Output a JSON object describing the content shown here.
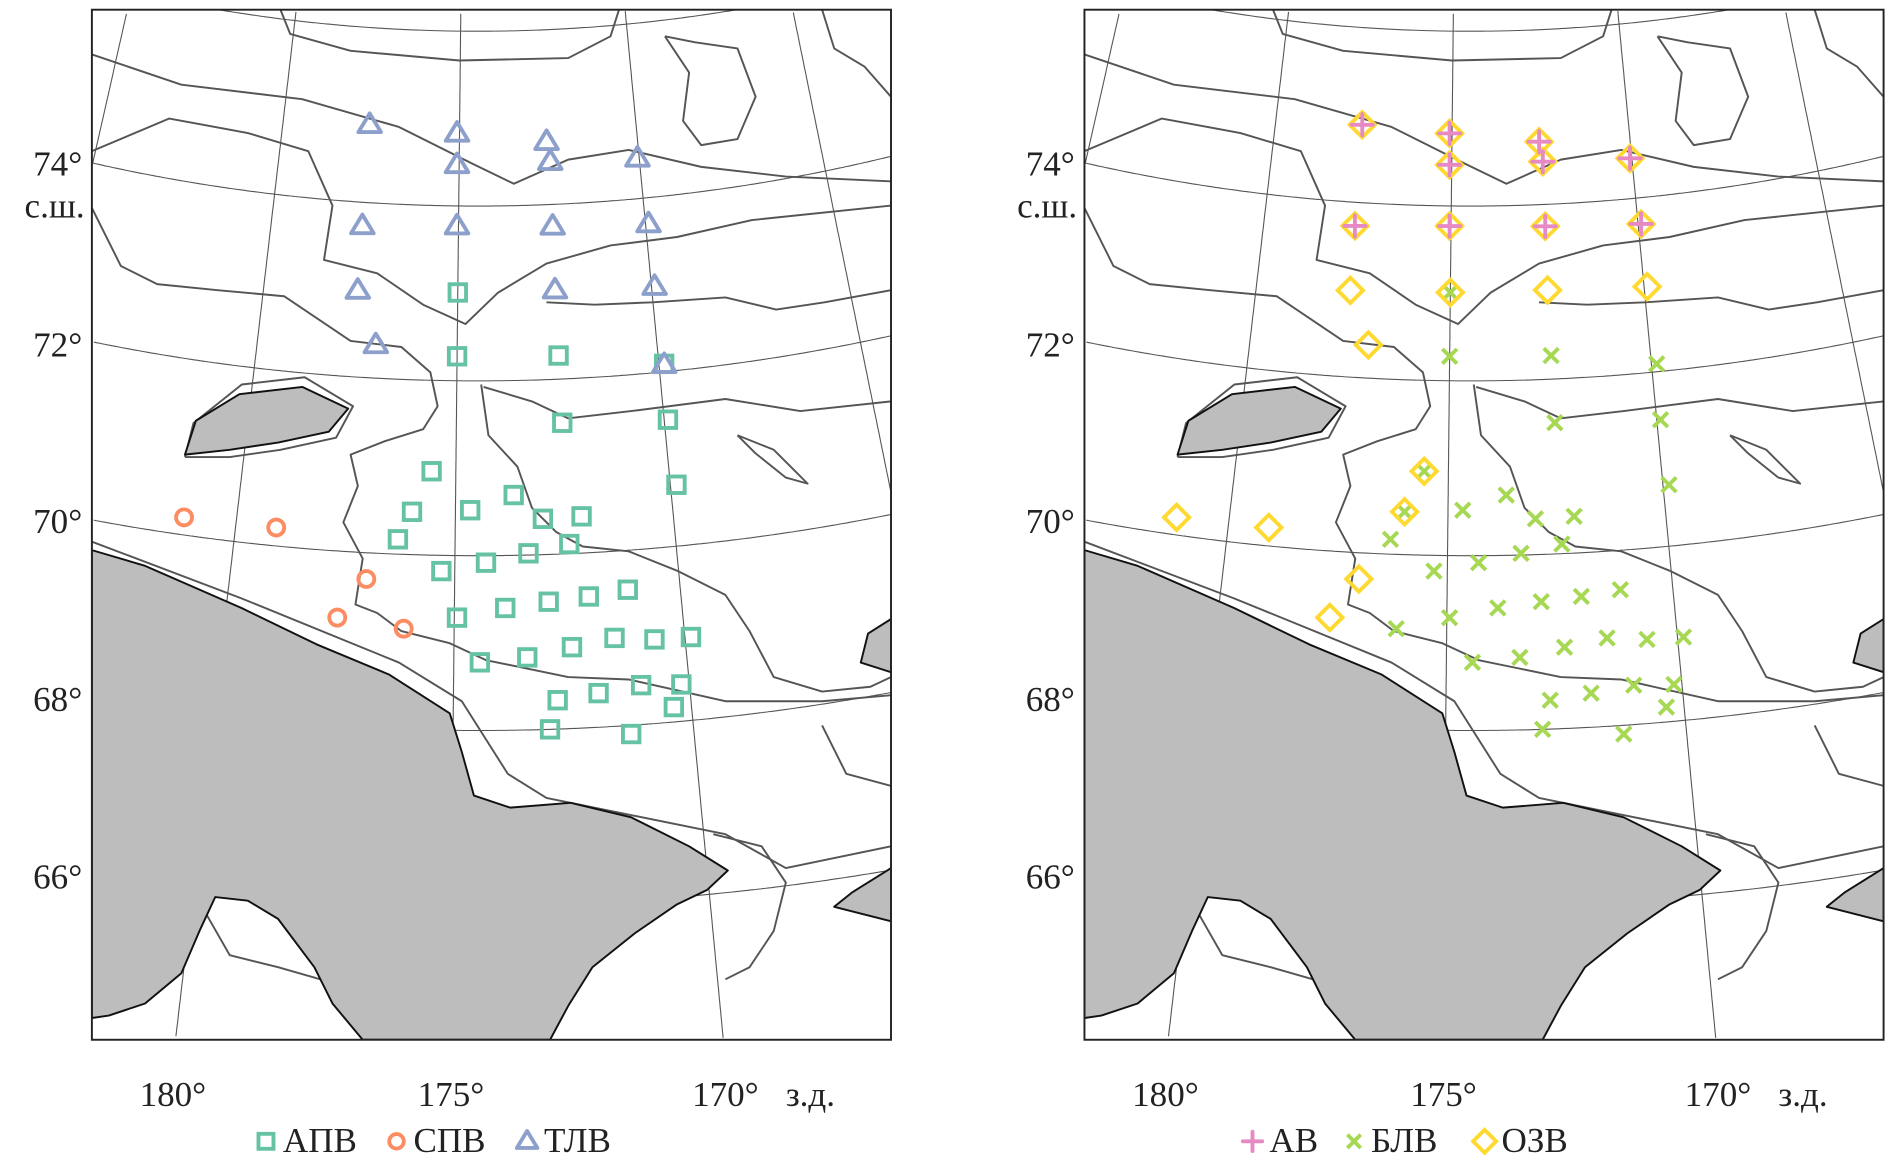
{
  "chart_data": [
    {
      "type": "scatter",
      "title": "",
      "panel": "left",
      "xlabel": "з.д.",
      "ylabel": "с.ш.",
      "lat_ticks": [
        "74°",
        "72°",
        "70°",
        "68°",
        "66°"
      ],
      "lon_ticks": [
        "180°",
        "175°",
        "170°"
      ],
      "lat_label": "с.ш.",
      "lon_label": "з.д.",
      "xlim_lon_w": [
        183,
        166
      ],
      "ylim_lat": [
        64,
        76
      ],
      "legend_position": "bottom-center",
      "series": [
        {
          "name": "АПВ",
          "marker": "square",
          "color": "#66c2a5",
          "points_lonW_lat": [
            [
              175.0,
              73.01
            ],
            [
              175.0,
              72.28
            ],
            [
              172.47,
              72.27
            ],
            [
              169.87,
              72.09
            ],
            [
              172.45,
              71.5
            ],
            [
              169.91,
              71.45
            ],
            [
              175.57,
              70.96
            ],
            [
              169.86,
              70.7
            ],
            [
              176.0,
              70.49
            ],
            [
              174.66,
              70.52
            ],
            [
              173.65,
              70.69
            ],
            [
              172.99,
              70.41
            ],
            [
              172.1,
              70.42
            ],
            [
              176.3,
              70.17
            ],
            [
              172.41,
              70.11
            ],
            [
              175.3,
              69.82
            ],
            [
              174.3,
              69.92
            ],
            [
              173.34,
              70.02
            ],
            [
              172.92,
              69.46
            ],
            [
              173.88,
              69.4
            ],
            [
              174.94,
              69.29
            ],
            [
              172.03,
              69.5
            ],
            [
              171.16,
              69.55
            ],
            [
              174.44,
              68.78
            ],
            [
              173.42,
              68.83
            ],
            [
              172.45,
              68.93
            ],
            [
              171.52,
              69.01
            ],
            [
              170.66,
              68.96
            ],
            [
              169.87,
              68.95
            ],
            [
              172.8,
              68.33
            ],
            [
              171.93,
              68.39
            ],
            [
              171.02,
              68.45
            ],
            [
              170.17,
              68.42
            ],
            [
              170.37,
              68.17
            ],
            [
              172.98,
              68.0
            ],
            [
              171.3,
              67.9
            ]
          ]
        },
        {
          "name": "СПВ",
          "marker": "circle",
          "color": "#fc8d62",
          "points_lonW_lat": [
            [
              181.19,
              70.2
            ],
            [
              179.08,
              70.21
            ],
            [
              176.97,
              69.7
            ],
            [
              177.56,
              69.24
            ],
            [
              176.1,
              69.15
            ]
          ]
        },
        {
          "name": "ТЛВ",
          "marker": "triangle",
          "color": "#8da0cb",
          "points_lonW_lat": [
            [
              177.55,
              74.89
            ],
            [
              175.07,
              74.83
            ],
            [
              175.06,
              74.47
            ],
            [
              172.55,
              74.72
            ],
            [
              172.47,
              74.49
            ],
            [
              170.05,
              74.46
            ],
            [
              177.57,
              73.73
            ],
            [
              175.04,
              73.77
            ],
            [
              172.48,
              73.75
            ],
            [
              169.92,
              73.7
            ],
            [
              177.58,
              72.99
            ],
            [
              172.49,
              73.02
            ],
            [
              169.92,
              72.98
            ],
            [
              177.04,
              72.38
            ],
            [
              169.87,
              72.08
            ]
          ]
        }
      ]
    },
    {
      "type": "scatter",
      "title": "",
      "panel": "right",
      "xlabel": "з.д.",
      "ylabel": "с.ш.",
      "lat_ticks": [
        "74°",
        "72°",
        "70°",
        "68°",
        "66°"
      ],
      "lon_ticks": [
        "180°",
        "175°",
        "170°"
      ],
      "lat_label": "с.ш.",
      "lon_label": "з.д.",
      "xlim_lon_w": [
        183,
        166
      ],
      "ylim_lat": [
        64,
        76
      ],
      "legend_position": "bottom-center",
      "series": [
        {
          "name": "АВ",
          "marker": "plus",
          "color": "#e78ac3",
          "points_lonW_lat": [
            [
              177.55,
              74.89
            ],
            [
              175.07,
              74.83
            ],
            [
              175.06,
              74.47
            ],
            [
              172.55,
              74.72
            ],
            [
              172.47,
              74.49
            ],
            [
              170.05,
              74.46
            ],
            [
              177.57,
              73.73
            ],
            [
              175.04,
              73.77
            ],
            [
              172.48,
              73.75
            ],
            [
              169.92,
              73.7
            ]
          ]
        },
        {
          "name": "БЛВ",
          "marker": "cross",
          "color": "#a6d854",
          "points_lonW_lat": [
            [
              175.0,
              73.01
            ],
            [
              175.0,
              72.28
            ],
            [
              172.47,
              72.27
            ],
            [
              169.87,
              72.09
            ],
            [
              172.45,
              71.5
            ],
            [
              169.91,
              71.45
            ],
            [
              175.57,
              70.96
            ],
            [
              169.86,
              70.7
            ],
            [
              176.0,
              70.49
            ],
            [
              174.66,
              70.52
            ],
            [
              173.65,
              70.69
            ],
            [
              172.99,
              70.41
            ],
            [
              172.1,
              70.42
            ],
            [
              176.3,
              70.17
            ],
            [
              172.41,
              70.11
            ],
            [
              175.3,
              69.82
            ],
            [
              174.3,
              69.92
            ],
            [
              173.34,
              70.02
            ],
            [
              172.92,
              69.46
            ],
            [
              173.88,
              69.4
            ],
            [
              174.94,
              69.29
            ],
            [
              172.03,
              69.5
            ],
            [
              171.16,
              69.55
            ],
            [
              174.44,
              68.78
            ],
            [
              173.42,
              68.83
            ],
            [
              172.45,
              68.93
            ],
            [
              171.52,
              69.01
            ],
            [
              170.66,
              68.96
            ],
            [
              169.87,
              68.95
            ],
            [
              172.8,
              68.33
            ],
            [
              171.93,
              68.39
            ],
            [
              171.02,
              68.45
            ],
            [
              170.17,
              68.42
            ],
            [
              170.37,
              68.17
            ],
            [
              172.98,
              68.0
            ],
            [
              171.3,
              67.9
            ],
            [
              176.1,
              69.15
            ]
          ]
        },
        {
          "name": "ОЗВ",
          "marker": "diamond",
          "color": "#ffd92f",
          "points_lonW_lat": [
            [
              177.55,
              74.89
            ],
            [
              175.07,
              74.83
            ],
            [
              175.06,
              74.47
            ],
            [
              172.55,
              74.72
            ],
            [
              172.47,
              74.49
            ],
            [
              170.05,
              74.46
            ],
            [
              177.57,
              73.73
            ],
            [
              175.04,
              73.77
            ],
            [
              172.48,
              73.75
            ],
            [
              169.92,
              73.7
            ],
            [
              177.58,
              72.99
            ],
            [
              175.0,
              73.01
            ],
            [
              172.49,
              73.02
            ],
            [
              169.92,
              72.98
            ],
            [
              177.04,
              72.38
            ],
            [
              175.57,
              70.96
            ],
            [
              176.0,
              70.49
            ],
            [
              181.19,
              70.2
            ],
            [
              179.08,
              70.21
            ],
            [
              176.97,
              69.7
            ],
            [
              177.56,
              69.24
            ]
          ]
        }
      ]
    }
  ]
}
